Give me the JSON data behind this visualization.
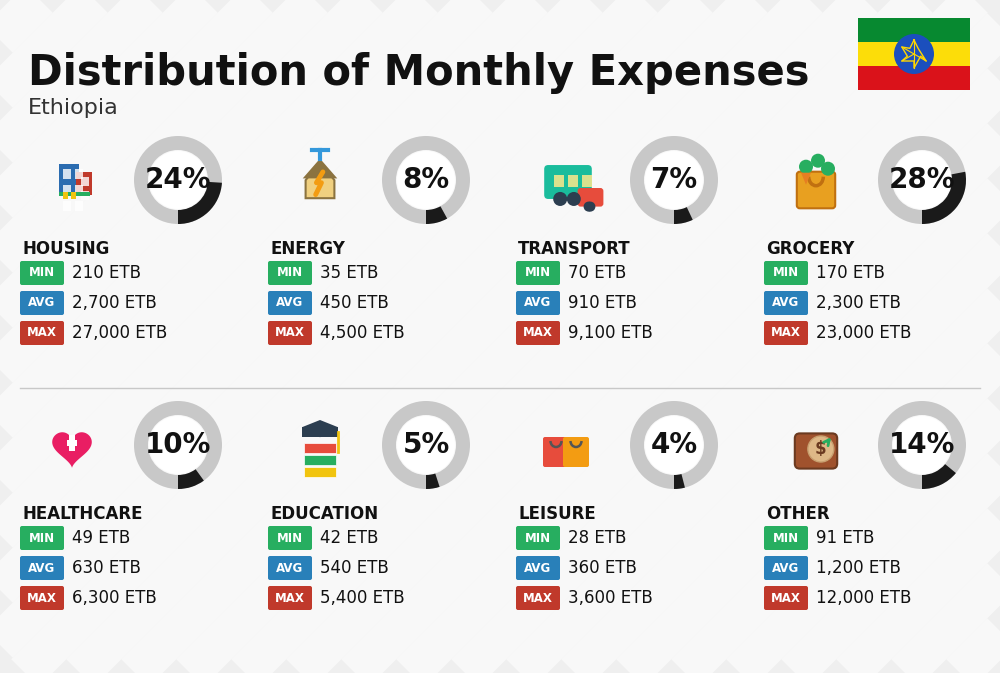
{
  "title": "Distribution of Monthly Expenses",
  "subtitle": "Ethiopia",
  "background_color": "#efefef",
  "categories": [
    {
      "name": "HOUSING",
      "percent": 24,
      "min": "210 ETB",
      "avg": "2,700 ETB",
      "max": "27,000 ETB",
      "col": 0,
      "row": 0
    },
    {
      "name": "ENERGY",
      "percent": 8,
      "min": "35 ETB",
      "avg": "450 ETB",
      "max": "4,500 ETB",
      "col": 1,
      "row": 0
    },
    {
      "name": "TRANSPORT",
      "percent": 7,
      "min": "70 ETB",
      "avg": "910 ETB",
      "max": "9,100 ETB",
      "col": 2,
      "row": 0
    },
    {
      "name": "GROCERY",
      "percent": 28,
      "min": "170 ETB",
      "avg": "2,300 ETB",
      "max": "23,000 ETB",
      "col": 3,
      "row": 0
    },
    {
      "name": "HEALTHCARE",
      "percent": 10,
      "min": "49 ETB",
      "avg": "630 ETB",
      "max": "6,300 ETB",
      "col": 0,
      "row": 1
    },
    {
      "name": "EDUCATION",
      "percent": 5,
      "min": "42 ETB",
      "avg": "540 ETB",
      "max": "5,400 ETB",
      "col": 1,
      "row": 1
    },
    {
      "name": "LEISURE",
      "percent": 4,
      "min": "28 ETB",
      "avg": "360 ETB",
      "max": "3,600 ETB",
      "col": 2,
      "row": 1
    },
    {
      "name": "OTHER",
      "percent": 14,
      "min": "91 ETB",
      "avg": "1,200 ETB",
      "max": "12,000 ETB",
      "col": 3,
      "row": 1
    }
  ],
  "color_min": "#27ae60",
  "color_avg": "#2980b9",
  "color_max": "#c0392b",
  "title_fontsize": 30,
  "subtitle_fontsize": 16,
  "category_fontsize": 12,
  "value_fontsize": 12,
  "percent_fontsize": 20,
  "flag_colors": [
    "#078930",
    "#FCDD09",
    "#DA121A"
  ],
  "flag_circle_color": "#1B4FBD",
  "stripe_color": "#e0e0e0"
}
